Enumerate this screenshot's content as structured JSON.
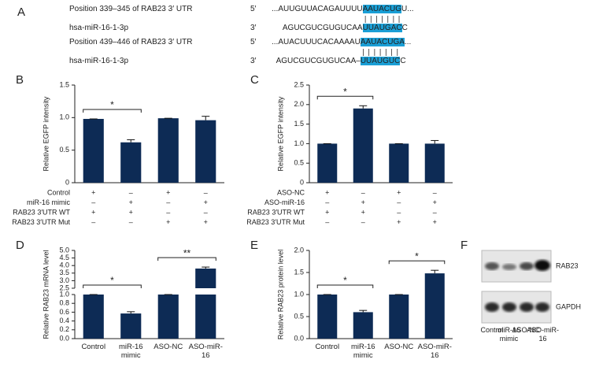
{
  "panel_a": {
    "label": "A",
    "pairs": [
      {
        "target": {
          "name": "Position 339–345 of RAB23 3′ UTR",
          "end": "5′",
          "seq": [
            {
              "text": "...AUUGUUACAGAUUUU"
            },
            {
              "text": "AAUACUG",
              "hl": true
            },
            {
              "text": "U..."
            }
          ]
        },
        "mirna": {
          "name": "hsa-miR-16-1-3p",
          "end": "3′",
          "seq": [
            {
              "text": "AGUCGUCGUGUCAA"
            },
            {
              "text": "UUAUGAC",
              "hl": true
            },
            {
              "text": "C"
            }
          ]
        }
      },
      {
        "target": {
          "name": "Position 439–446 of RAB23 3′ UTR",
          "end": "5′",
          "seq": [
            {
              "text": "...AUACUUUCACAAAAU"
            },
            {
              "text": "AAUACUGA",
              "hl": true
            },
            {
              "text": "..."
            }
          ]
        },
        "mirna": {
          "name": "hsa-miR-16-1-3p",
          "end": "3′",
          "seq": [
            {
              "text": "AGUCGUCGUGUCAA–"
            },
            {
              "text": "UUAUGUC",
              "hl": true
            },
            {
              "text": "C"
            }
          ]
        }
      }
    ],
    "highlight": "#1a9fd6"
  },
  "chart_data": [
    {
      "label": "B",
      "type": "bar",
      "ylabel": "Relative EGFP intensity",
      "color": "#0d2b55",
      "values": [
        0.98,
        0.62,
        0.99,
        0.96
      ],
      "errors": [
        0,
        0.04,
        0,
        0.06
      ],
      "ylim": [
        0,
        1.5
      ],
      "yticks": [
        0,
        0.5,
        {
          "value": 1,
          "label": "1.0"
        },
        1.5
      ],
      "significance": [
        {
          "from": 0,
          "to": 1,
          "label": "*"
        }
      ],
      "conditions": [
        {
          "name": "Control",
          "marks": [
            "+",
            "–",
            "+",
            "–"
          ]
        },
        {
          "name": "miR-16 mimic",
          "marks": [
            "–",
            "+",
            "–",
            "+"
          ]
        },
        {
          "name": "RAB23 3′UTR WT",
          "marks": [
            "+",
            "+",
            "–",
            "–"
          ]
        },
        {
          "name": "RAB23 3′UTR Mut",
          "marks": [
            "–",
            "–",
            "+",
            "+"
          ]
        }
      ]
    },
    {
      "label": "C",
      "type": "bar",
      "ylabel": "Relative EGFP intensity",
      "color": "#0d2b55",
      "values": [
        1.0,
        1.9,
        1.0,
        1.0
      ],
      "errors": [
        0,
        0.07,
        0,
        0.08
      ],
      "ylim": [
        0,
        2.5
      ],
      "yticks": [
        0,
        0.5,
        {
          "value": 1,
          "label": "1.0"
        },
        1.5,
        {
          "value": 2,
          "label": "2.0"
        },
        2.5
      ],
      "significance": [
        {
          "from": 0,
          "to": 1,
          "label": "*"
        }
      ],
      "conditions": [
        {
          "name": "ASO-NC",
          "marks": [
            "+",
            "–",
            "+",
            "–"
          ]
        },
        {
          "name": "ASO-miR-16",
          "marks": [
            "–",
            "+",
            "–",
            "+"
          ]
        },
        {
          "name": "RAB23 3′UTR WT",
          "marks": [
            "+",
            "+",
            "–",
            "–"
          ]
        },
        {
          "name": "RAB23 3′UTR Mut",
          "marks": [
            "–",
            "–",
            "+",
            "+"
          ]
        }
      ]
    },
    {
      "label": "D",
      "type": "bar",
      "ylabel": "Relative RAB23 mRNA level",
      "color": "#0d2b55",
      "categories": [
        "Control",
        "miR-16 mimic",
        "ASO-NC",
        "ASO-miR-16"
      ],
      "values": [
        1.0,
        0.57,
        1.0,
        3.8
      ],
      "errors": [
        0,
        0.04,
        0,
        0.1
      ],
      "ylim": [
        0,
        5
      ],
      "ybreak": [
        1,
        2.5
      ],
      "yticks": [
        {
          "value": 0,
          "label": "0.0"
        },
        0.2,
        0.4,
        0.6,
        0.8,
        {
          "value": 1,
          "label": "1.0"
        },
        2.5,
        {
          "value": 3,
          "label": "3.0"
        },
        3.5,
        {
          "value": 4,
          "label": "4.0"
        },
        4.5,
        {
          "value": 5,
          "label": "5.0"
        }
      ],
      "significance": [
        {
          "from": 0,
          "to": 1,
          "label": "*"
        },
        {
          "from": 2,
          "to": 3,
          "label": "**"
        }
      ]
    },
    {
      "label": "E",
      "type": "bar",
      "ylabel": "Relative RAB23 protein level",
      "color": "#0d2b55",
      "categories": [
        "Control",
        "miR-16 mimic",
        "ASO-NC",
        "ASO-miR-16"
      ],
      "values": [
        1.0,
        0.6,
        1.0,
        1.48
      ],
      "errors": [
        0,
        0.04,
        0,
        0.07
      ],
      "ylim": [
        0,
        2
      ],
      "yticks": [
        {
          "value": 0,
          "label": "0.0"
        },
        0.5,
        {
          "value": 1,
          "label": "1.0"
        },
        1.5,
        {
          "value": 2,
          "label": "2.0"
        }
      ],
      "significance": [
        {
          "from": 0,
          "to": 1,
          "label": "*"
        },
        {
          "from": 2,
          "to": 3,
          "label": "*"
        }
      ]
    }
  ],
  "panel_f": {
    "label": "F",
    "blots": [
      "RAB23",
      "GAPDH"
    ],
    "lanes": [
      "Control",
      "miR-16 mimic",
      "ASO-NC",
      "ASO-miR-16"
    ]
  }
}
